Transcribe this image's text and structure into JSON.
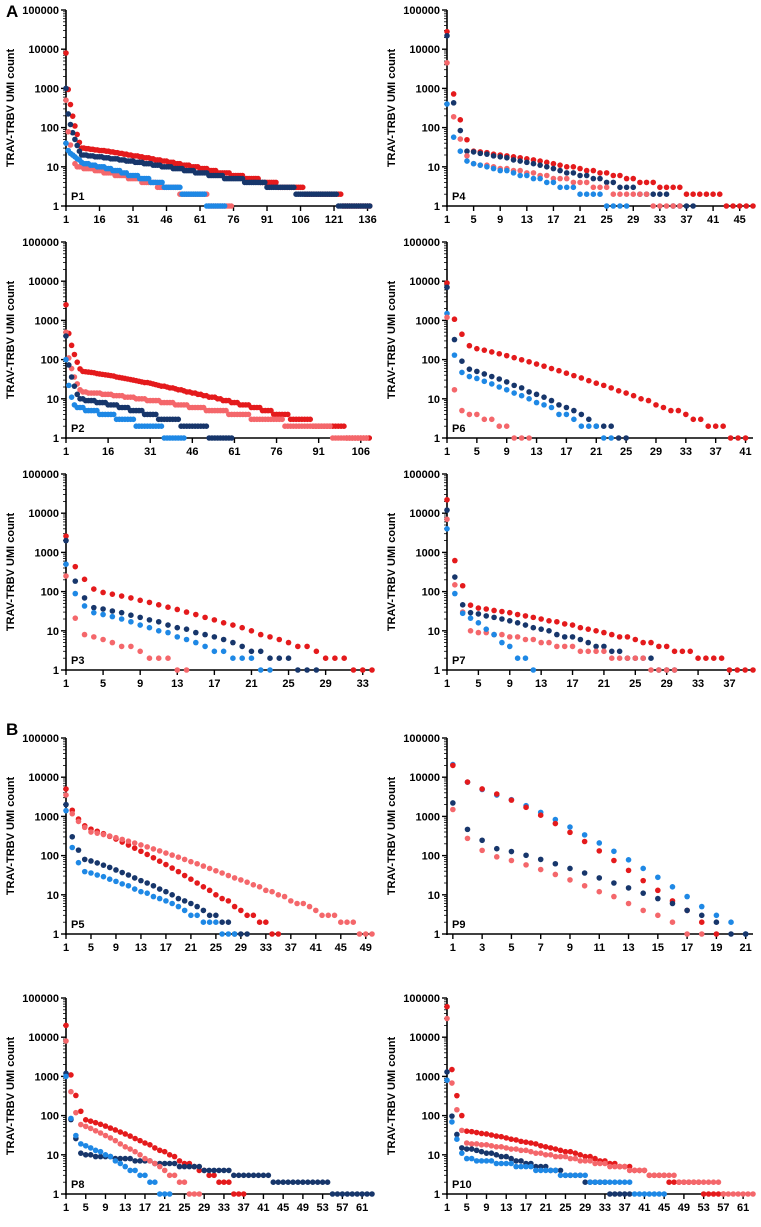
{
  "section_labels": {
    "a": "A",
    "b": "B"
  },
  "colors": {
    "red": "#e41a1c",
    "pink": "#f4676b",
    "navy": "#17366b",
    "blue": "#1e88e5"
  },
  "chart_data": [
    {
      "type": "scatter",
      "panel_label": "P1",
      "ylabel": "TRAV-TRBV UMI count",
      "yscale": "log",
      "ylim": [
        1,
        100000
      ],
      "yticks": [
        "1",
        "10",
        "100",
        "1000",
        "10000",
        "100000"
      ],
      "xlim": [
        1,
        138
      ],
      "xticks": [
        1,
        16,
        31,
        46,
        61,
        76,
        91,
        106,
        121,
        136
      ],
      "series": [
        {
          "color": "red",
          "n": 137,
          "start": 8000,
          "mid": 30,
          "frac": 0.05,
          "tail": 8
        },
        {
          "color": "navy",
          "n": 137,
          "start": 1000,
          "mid": 20,
          "frac": 0.05,
          "tail": 4
        },
        {
          "color": "pink",
          "n": 75,
          "start": 500,
          "mid": 10,
          "frac": 0.06,
          "tail": 3
        },
        {
          "color": "blue",
          "n": 72,
          "start": 40,
          "mid": 12,
          "frac": 0.12,
          "tail": 3
        }
      ]
    },
    {
      "type": "scatter",
      "panel_label": "P4",
      "ylabel": "TRAV-TRBV UMI count",
      "yscale": "log",
      "ylim": [
        1,
        100000
      ],
      "yticks": [
        "1",
        "10",
        "100",
        "1000",
        "10000",
        "100000"
      ],
      "xlim": [
        1,
        47
      ],
      "xticks": [
        1,
        5,
        9,
        13,
        17,
        21,
        25,
        29,
        33,
        37,
        41,
        45
      ],
      "series": [
        {
          "color": "red",
          "n": 47,
          "start": 28000,
          "mid": 25,
          "frac": 0.08,
          "tail": 5
        },
        {
          "color": "navy",
          "n": 38,
          "start": 22000,
          "mid": 25,
          "frac": 0.08,
          "tail": 5
        },
        {
          "color": "pink",
          "n": 36,
          "start": 4500,
          "mid": 12,
          "frac": 0.1,
          "tail": 3
        },
        {
          "color": "blue",
          "n": 28,
          "start": 400,
          "mid": 12,
          "frac": 0.12,
          "tail": 3
        }
      ]
    },
    {
      "type": "scatter",
      "panel_label": "P2",
      "ylabel": "TRAV-TRBV UMI count",
      "yscale": "log",
      "ylim": [
        1,
        100000
      ],
      "yticks": [
        "1",
        "10",
        "100",
        "1000",
        "10000",
        "100000"
      ],
      "xlim": [
        1,
        110
      ],
      "xticks": [
        1,
        16,
        31,
        46,
        61,
        76,
        91,
        106
      ],
      "series": [
        {
          "color": "red",
          "n": 109,
          "start": 2500,
          "mid": 50,
          "frac": 0.05,
          "tail": 8
        },
        {
          "color": "pink",
          "n": 108,
          "start": 500,
          "mid": 15,
          "frac": 0.05,
          "tail": 4
        },
        {
          "color": "navy",
          "n": 60,
          "start": 400,
          "mid": 10,
          "frac": 0.08,
          "tail": 3
        },
        {
          "color": "blue",
          "n": 43,
          "start": 100,
          "mid": 6,
          "frac": 0.08,
          "tail": 3
        }
      ]
    },
    {
      "type": "scatter",
      "panel_label": "P6",
      "ylabel": "TRAV-TRBV UMI count",
      "yscale": "log",
      "ylim": [
        1,
        100000
      ],
      "yticks": [
        "1",
        "10",
        "100",
        "1000",
        "10000",
        "100000"
      ],
      "xlim": [
        1,
        42
      ],
      "xticks": [
        1,
        5,
        9,
        13,
        17,
        21,
        25,
        29,
        33,
        37,
        41
      ],
      "series": [
        {
          "color": "red",
          "n": 41,
          "start": 9000,
          "mid": 200,
          "frac": 0.08,
          "tail": 5
        },
        {
          "color": "navy",
          "n": 25,
          "start": 7000,
          "mid": 60,
          "frac": 0.1,
          "tail": 4
        },
        {
          "color": "blue",
          "n": 23,
          "start": 1500,
          "mid": 40,
          "frac": 0.1,
          "tail": 3
        },
        {
          "color": "pink",
          "n": 12,
          "start": 1200,
          "mid": 5,
          "frac": 0.15,
          "tail": 2
        }
      ]
    },
    {
      "type": "scatter",
      "panel_label": "P3",
      "ylabel": "TRAV-TRBV UMI count",
      "yscale": "log",
      "ylim": [
        1,
        100000
      ],
      "yticks": [
        "1",
        "10",
        "100",
        "1000",
        "10000",
        "100000"
      ],
      "xlim": [
        1,
        34
      ],
      "xticks": [
        1,
        5,
        9,
        13,
        17,
        21,
        25,
        29,
        33
      ],
      "series": [
        {
          "color": "red",
          "n": 34,
          "start": 2600,
          "mid": 100,
          "frac": 0.1,
          "tail": 5
        },
        {
          "color": "navy",
          "n": 28,
          "start": 2000,
          "mid": 40,
          "frac": 0.1,
          "tail": 4
        },
        {
          "color": "blue",
          "n": 23,
          "start": 500,
          "mid": 30,
          "frac": 0.12,
          "tail": 4
        },
        {
          "color": "pink",
          "n": 14,
          "start": 250,
          "mid": 8,
          "frac": 0.15,
          "tail": 3
        }
      ]
    },
    {
      "type": "scatter",
      "panel_label": "P7",
      "ylabel": "TRAV-TRBV UMI count",
      "yscale": "log",
      "ylim": [
        1,
        100000
      ],
      "yticks": [
        "1",
        "10",
        "100",
        "1000",
        "10000",
        "100000"
      ],
      "xlim": [
        1,
        40
      ],
      "xticks": [
        1,
        5,
        9,
        13,
        17,
        21,
        25,
        29,
        33,
        37
      ],
      "series": [
        {
          "color": "red",
          "n": 40,
          "start": 22000,
          "mid": 40,
          "frac": 0.08,
          "tail": 5
        },
        {
          "color": "navy",
          "n": 30,
          "start": 12000,
          "mid": 30,
          "frac": 0.08,
          "tail": 4
        },
        {
          "color": "pink",
          "n": 30,
          "start": 7000,
          "mid": 10,
          "frac": 0.1,
          "tail": 3
        },
        {
          "color": "blue",
          "n": 12,
          "start": 4000,
          "mid": 30,
          "frac": 0.15,
          "tail": 3
        }
      ]
    },
    {
      "type": "scatter",
      "panel_label": "P5",
      "ylabel": "TRAV-TRBV UMI count",
      "yscale": "log",
      "ylim": [
        1,
        100000
      ],
      "yticks": [
        "1",
        "10",
        "100",
        "1000",
        "10000",
        "100000"
      ],
      "xlim": [
        1,
        50
      ],
      "xticks": [
        1,
        5,
        9,
        13,
        17,
        21,
        25,
        29,
        33,
        37,
        41,
        45,
        49
      ],
      "series": [
        {
          "color": "red",
          "n": 35,
          "start": 5000,
          "mid": 500,
          "frac": 0.1,
          "tail": 4
        },
        {
          "color": "pink",
          "n": 50,
          "start": 3500,
          "mid": 400,
          "frac": 0.08,
          "tail": 3
        },
        {
          "color": "navy",
          "n": 30,
          "start": 2000,
          "mid": 80,
          "frac": 0.1,
          "tail": 4
        },
        {
          "color": "blue",
          "n": 28,
          "start": 1400,
          "mid": 40,
          "frac": 0.1,
          "tail": 4
        }
      ]
    },
    {
      "type": "scatter",
      "panel_label": "P9",
      "ylabel": "TRAV-TRBV UMI count",
      "yscale": "log",
      "ylim": [
        1,
        100000
      ],
      "yticks": [
        "1",
        "10",
        "100",
        "1000",
        "10000",
        "100000"
      ],
      "xlim": [
        0.6,
        21.5
      ],
      "xticks": [
        1,
        3,
        5,
        7,
        9,
        11,
        13,
        15,
        17,
        19,
        21
      ],
      "series": [
        {
          "color": "blue",
          "n": 21,
          "start": 21000,
          "mid": 3500,
          "frac": 0.15,
          "tail": 2
        },
        {
          "color": "red",
          "n": 19,
          "start": 20000,
          "mid": 4000,
          "frac": 0.15,
          "tail": 2
        },
        {
          "color": "navy",
          "n": 21,
          "start": 2200,
          "mid": 150,
          "frac": 0.15,
          "tail": 2
        },
        {
          "color": "pink",
          "n": 18,
          "start": 1500,
          "mid": 100,
          "frac": 0.15,
          "tail": 2
        }
      ]
    },
    {
      "type": "scatter",
      "panel_label": "P8",
      "ylabel": "TRAV-TRBV UMI count",
      "yscale": "log",
      "ylim": [
        1,
        100000
      ],
      "yticks": [
        "1",
        "10",
        "100",
        "1000",
        "10000",
        "100000"
      ],
      "xlim": [
        1,
        63
      ],
      "xticks": [
        1,
        5,
        9,
        13,
        17,
        21,
        25,
        29,
        33,
        37,
        41,
        45,
        49,
        53,
        57,
        61
      ],
      "series": [
        {
          "color": "red",
          "n": 37,
          "start": 20000,
          "mid": 80,
          "frac": 0.1,
          "tail": 4
        },
        {
          "color": "navy",
          "n": 63,
          "start": 1200,
          "mid": 10,
          "frac": 0.05,
          "tail": 4
        },
        {
          "color": "pink",
          "n": 28,
          "start": 8000,
          "mid": 60,
          "frac": 0.1,
          "tail": 4
        },
        {
          "color": "blue",
          "n": 22,
          "start": 1000,
          "mid": 20,
          "frac": 0.12,
          "tail": 3
        }
      ]
    },
    {
      "type": "scatter",
      "panel_label": "P10",
      "ylabel": "TRAV-TRBV UMI count",
      "yscale": "log",
      "ylim": [
        1,
        100000
      ],
      "yticks": [
        "1",
        "10",
        "100",
        "1000",
        "10000",
        "100000"
      ],
      "xlim": [
        1,
        63
      ],
      "xticks": [
        1,
        5,
        9,
        13,
        17,
        21,
        25,
        29,
        33,
        37,
        41,
        45,
        49,
        53,
        57,
        61
      ],
      "series": [
        {
          "color": "red",
          "n": 57,
          "start": 60000,
          "mid": 40,
          "frac": 0.07,
          "tail": 5
        },
        {
          "color": "pink",
          "n": 63,
          "start": 30000,
          "mid": 20,
          "frac": 0.06,
          "tail": 3
        },
        {
          "color": "navy",
          "n": 38,
          "start": 1300,
          "mid": 15,
          "frac": 0.08,
          "tail": 3
        },
        {
          "color": "blue",
          "n": 45,
          "start": 800,
          "mid": 8,
          "frac": 0.08,
          "tail": 3
        }
      ]
    }
  ]
}
